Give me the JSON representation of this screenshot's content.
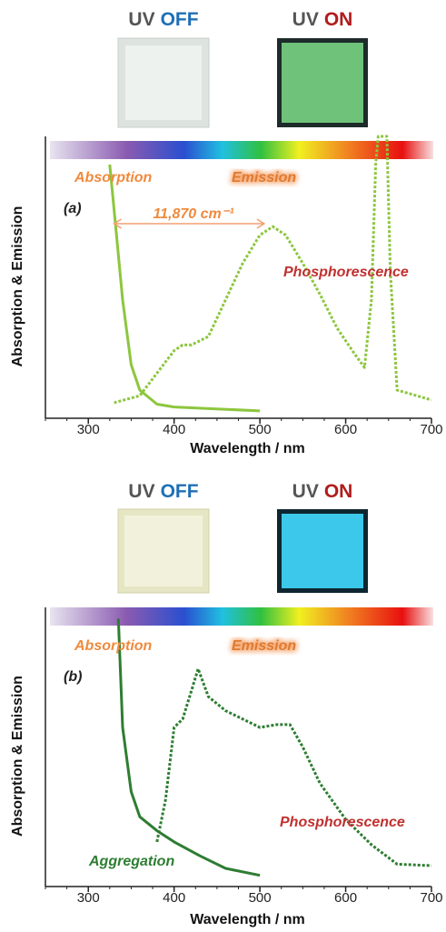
{
  "chart_data": [
    {
      "type": "line",
      "photo_labels": [
        [
          "UV",
          "OFF"
        ],
        [
          "UV",
          "ON"
        ]
      ],
      "photo_label_colors": [
        "#555555",
        "#1f6fb5",
        "#555555",
        "#b01c1c"
      ],
      "xlabel": "Wavelength / nm",
      "ylabel": "Absorption & Emission",
      "annotations": [
        "Absorption",
        "Emission",
        "(a)",
        "11,870 cm⁻¹",
        "Phosphorescence"
      ],
      "xlim": [
        250,
        700
      ],
      "xticks": [
        300,
        400,
        500,
        600,
        700
      ],
      "ylim": [
        0,
        100
      ],
      "series": [
        {
          "name": "Absorption",
          "color": "#8dc63f",
          "line_style": "solid",
          "x": [
            325,
            330,
            340,
            350,
            360,
            380,
            400,
            500
          ],
          "values": [
            90,
            74,
            42,
            19,
            10,
            5,
            4,
            2.6
          ]
        },
        {
          "name": "Emission",
          "color": "#8dc63f",
          "line_style": "dotted",
          "x": [
            330,
            360,
            380,
            400,
            410,
            420,
            440,
            460,
            480,
            500,
            515,
            530,
            550,
            570,
            590,
            610,
            622,
            630,
            635,
            638,
            645,
            648,
            652,
            660,
            700
          ],
          "values": [
            5.5,
            8,
            16,
            24,
            26,
            26,
            29,
            42,
            55,
            65,
            68,
            65,
            55,
            44,
            32,
            23,
            18,
            42,
            90,
            100,
            100,
            100,
            52,
            10,
            6.5
          ]
        }
      ]
    },
    {
      "type": "line",
      "photo_labels": [
        [
          "UV",
          "OFF"
        ],
        [
          "UV",
          "ON"
        ]
      ],
      "photo_label_colors": [
        "#555555",
        "#1f6fb5",
        "#555555",
        "#b01c1c"
      ],
      "xlabel": "Wavelength / nm",
      "ylabel": "Absorption & Emission",
      "annotations": [
        "Absorption",
        "Emission",
        "(b)",
        "Phosphorescence",
        "Aggregation"
      ],
      "xlim": [
        250,
        700
      ],
      "xticks": [
        300,
        400,
        500,
        600,
        700
      ],
      "ylim": [
        0,
        100
      ],
      "series": [
        {
          "name": "Absorption",
          "color": "#2e7d32",
          "line_style": "solid",
          "x": [
            335,
            340,
            350,
            360,
            380,
            400,
            430,
            460,
            500
          ],
          "values": [
            96,
            57,
            34,
            25,
            20,
            16,
            11,
            6.5,
            4
          ]
        },
        {
          "name": "Emission",
          "color": "#2e7d32",
          "line_style": "dotted",
          "x": [
            380,
            390,
            400,
            410,
            420,
            428,
            440,
            460,
            480,
            500,
            520,
            535,
            550,
            570,
            600,
            630,
            660,
            700
          ],
          "values": [
            16,
            31,
            57,
            60,
            70,
            78,
            68,
            63,
            60,
            57,
            58,
            58,
            50,
            37,
            24,
            15,
            8,
            7.5
          ]
        }
      ]
    }
  ]
}
